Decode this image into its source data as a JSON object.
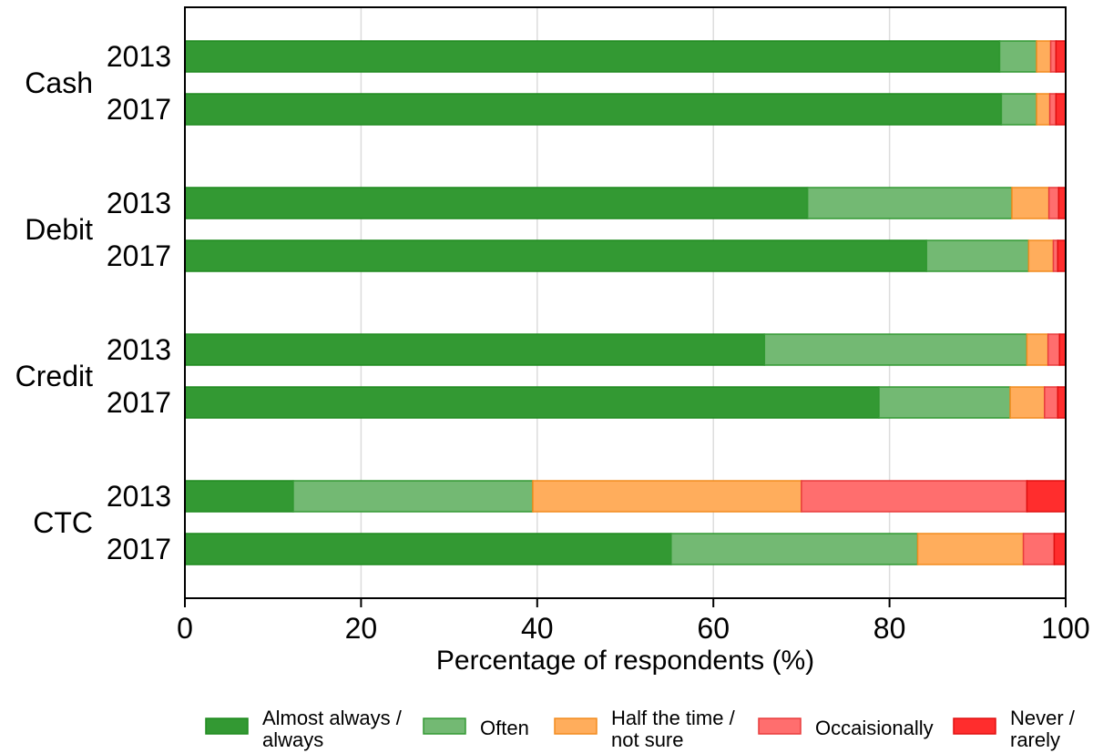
{
  "chart_data": {
    "type": "bar",
    "orientation": "horizontal",
    "stacked": true,
    "title": "",
    "xlabel": "Percentage of respondents (%)",
    "ylabel": "",
    "xlim": [
      0,
      100
    ],
    "xticks": [
      0,
      20,
      40,
      60,
      80,
      100
    ],
    "grid": true,
    "legend_position": "bottom",
    "groups": [
      {
        "label": "Cash",
        "bars": [
          {
            "label": "2013",
            "values": [
              92.5,
              4.2,
              1.6,
              0.6,
              1.1
            ]
          },
          {
            "label": "2017",
            "values": [
              92.7,
              4.0,
              1.5,
              0.7,
              1.1
            ]
          }
        ]
      },
      {
        "label": "Debit",
        "bars": [
          {
            "label": "2013",
            "values": [
              70.7,
              23.2,
              4.2,
              1.1,
              0.8
            ]
          },
          {
            "label": "2017",
            "values": [
              84.2,
              11.6,
              2.8,
              0.5,
              0.9
            ]
          }
        ]
      },
      {
        "label": "Credit",
        "bars": [
          {
            "label": "2013",
            "values": [
              65.8,
              29.8,
              2.4,
              1.3,
              0.7
            ]
          },
          {
            "label": "2017",
            "values": [
              78.8,
              14.9,
              3.9,
              1.5,
              0.9
            ]
          }
        ]
      },
      {
        "label": "CTC",
        "bars": [
          {
            "label": "2013",
            "values": [
              12.3,
              27.2,
              30.5,
              25.6,
              4.4
            ]
          },
          {
            "label": "2017",
            "values": [
              55.2,
              28.0,
              12.0,
              3.5,
              1.3
            ]
          }
        ]
      }
    ],
    "series": [
      {
        "name": "Almost always / always",
        "lines": [
          "Almost always /",
          "always"
        ],
        "color": "#339933",
        "stroke": "#1f8a1f"
      },
      {
        "name": "Often",
        "lines": [
          "Often"
        ],
        "color": "#73b973",
        "stroke": "#339933"
      },
      {
        "name": "Half the time / not sure",
        "lines": [
          "Half the time /",
          "not sure"
        ],
        "color": "#ffad5c",
        "stroke": "#f28c1e"
      },
      {
        "name": "Occaisionally",
        "lines": [
          "Occaisionally"
        ],
        "color": "#ff6e6e",
        "stroke": "#e83c3c"
      },
      {
        "name": "Never / rarely",
        "lines": [
          "Never /",
          "rarely"
        ],
        "color": "#ff2d2d",
        "stroke": "#e01010"
      }
    ]
  }
}
